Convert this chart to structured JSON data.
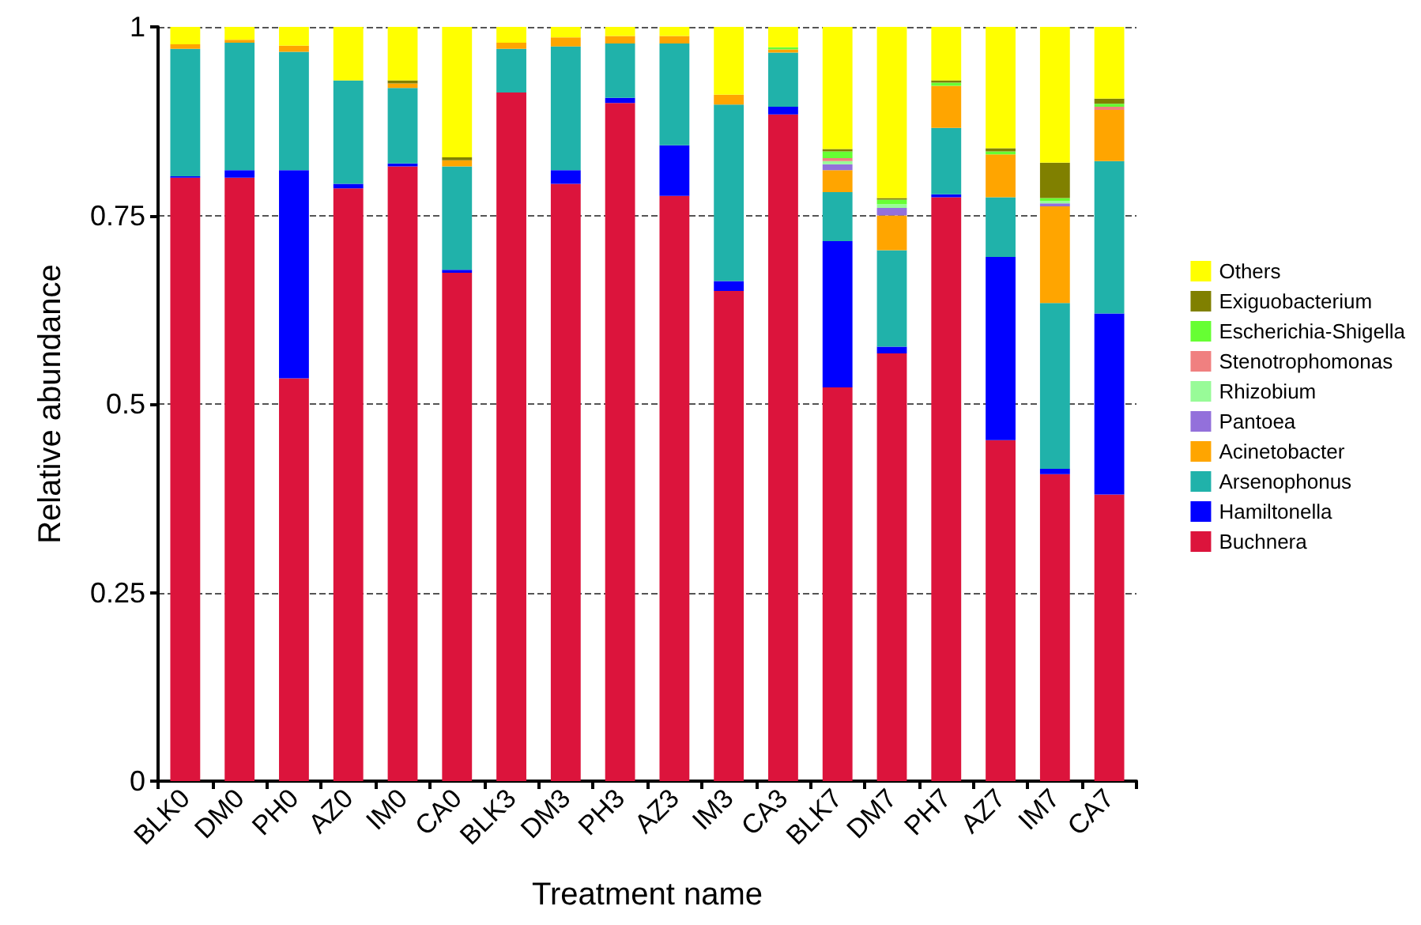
{
  "chart_data": {
    "type": "bar",
    "stacked": true,
    "xlabel": "Treatment name",
    "ylabel": "Relative abundance",
    "categories": [
      "BLK0",
      "DM0",
      "PH0",
      "AZ0",
      "IM0",
      "CA0",
      "BLK3",
      "DM3",
      "PH3",
      "AZ3",
      "IM3",
      "CA3",
      "BLK7",
      "DM7",
      "PH7",
      "AZ7",
      "IM7",
      "CA7"
    ],
    "series": [
      {
        "name": "Buchnera",
        "color": "#dc143c",
        "values": [
          0.8,
          0.8,
          0.534,
          0.786,
          0.815,
          0.674,
          0.913,
          0.792,
          0.899,
          0.776,
          0.65,
          0.884,
          0.522,
          0.567,
          0.774,
          0.452,
          0.407,
          0.38
        ]
      },
      {
        "name": "Hamiltonella",
        "color": "#0000ff",
        "values": [
          0.002,
          0.01,
          0.276,
          0.006,
          0.004,
          0.004,
          0,
          0.018,
          0.007,
          0.067,
          0.013,
          0.01,
          0.194,
          0.009,
          0.004,
          0.243,
          0.007,
          0.24
        ]
      },
      {
        "name": "Arsenophonus",
        "color": "#20b2aa",
        "values": [
          0.169,
          0.169,
          0.157,
          0.137,
          0.1,
          0.137,
          0.058,
          0.164,
          0.072,
          0.135,
          0.234,
          0.072,
          0.065,
          0.128,
          0.088,
          0.079,
          0.22,
          0.202
        ]
      },
      {
        "name": "Acinetobacter",
        "color": "#ffa500",
        "values": [
          0.006,
          0.004,
          0.008,
          0,
          0.006,
          0.008,
          0.008,
          0.012,
          0.01,
          0.01,
          0.013,
          0.004,
          0.029,
          0.046,
          0.056,
          0.057,
          0.128,
          0.068
        ]
      },
      {
        "name": "Pantoea",
        "color": "#9370db",
        "values": [
          0,
          0,
          0,
          0,
          0,
          0,
          0,
          0,
          0,
          0,
          0,
          0,
          0.008,
          0.01,
          0,
          0,
          0.004,
          0
        ]
      },
      {
        "name": "Rhizobium",
        "color": "#98fb98",
        "values": [
          0,
          0,
          0,
          0,
          0,
          0,
          0,
          0,
          0,
          0,
          0,
          0,
          0.004,
          0.005,
          0,
          0,
          0.003,
          0
        ]
      },
      {
        "name": "Stenotrophomonas",
        "color": "#f08080",
        "values": [
          0,
          0,
          0,
          0,
          0,
          0,
          0,
          0,
          0,
          0,
          0,
          0,
          0.004,
          0,
          0,
          0,
          0,
          0.004
        ]
      },
      {
        "name": "Escherichia-Shigella",
        "color": "#66ff33",
        "values": [
          0,
          0,
          0,
          0,
          0,
          0,
          0,
          0,
          0,
          0,
          0,
          0.003,
          0.009,
          0.006,
          0.004,
          0.004,
          0.004,
          0.004
        ]
      },
      {
        "name": "Exiguobacterium",
        "color": "#808000",
        "values": [
          0,
          0,
          0,
          0,
          0.004,
          0.004,
          0,
          0,
          0,
          0,
          0,
          0,
          0.003,
          0.002,
          0.003,
          0.004,
          0.047,
          0.007
        ]
      },
      {
        "name": "Others",
        "color": "#ffff00",
        "values": [
          0.023,
          0.017,
          0.025,
          0.071,
          0.071,
          0.173,
          0.021,
          0.014,
          0.012,
          0.012,
          0.09,
          0.027,
          0.162,
          0.227,
          0.071,
          0.161,
          0.18,
          0.095
        ]
      }
    ],
    "ylim": [
      0,
      1
    ],
    "yticks": [
      0,
      0.25,
      0.5,
      0.75,
      1
    ],
    "grid": "y",
    "legend": "right"
  }
}
